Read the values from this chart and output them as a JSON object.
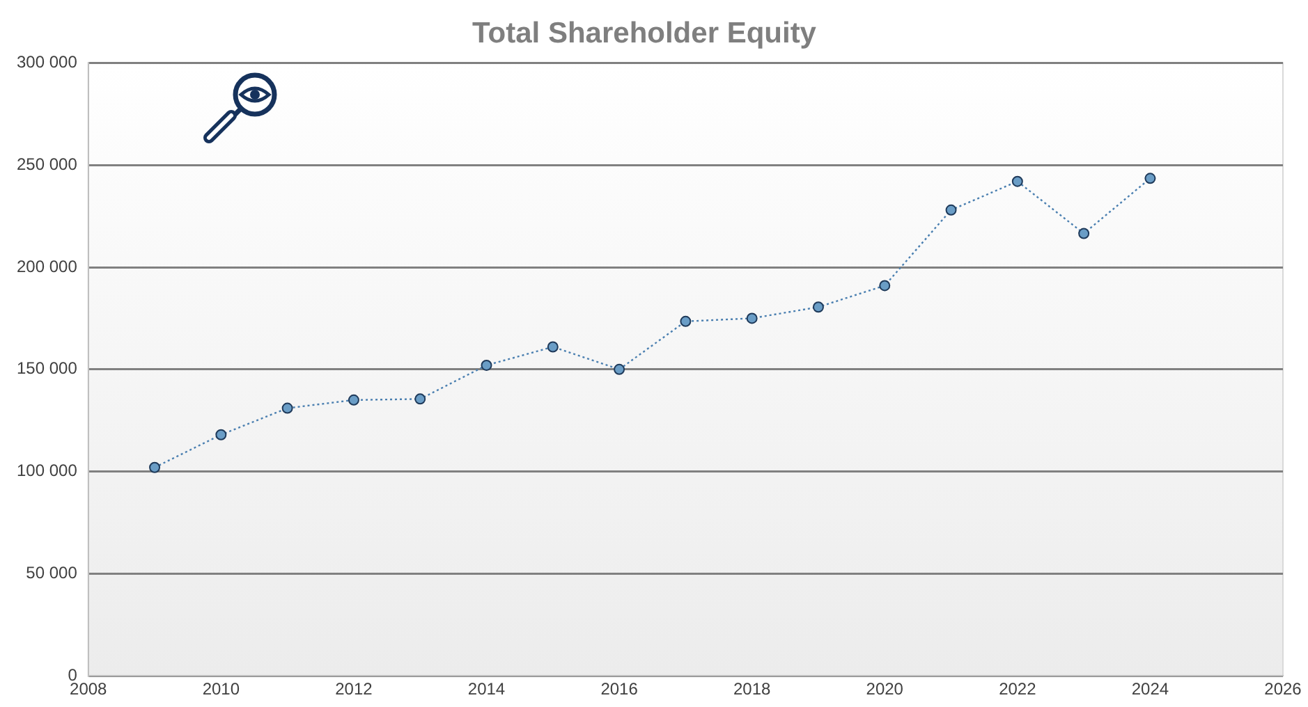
{
  "chart_data": {
    "type": "line",
    "title": "Total Shareholder Equity",
    "x": [
      2009,
      2010,
      2011,
      2012,
      2013,
      2014,
      2015,
      2016,
      2017,
      2018,
      2019,
      2020,
      2021,
      2022,
      2023,
      2024
    ],
    "series": [
      {
        "color": "#4a7fb0",
        "values": [
          102000,
          118000,
          131000,
          135000,
          135500,
          152000,
          161000,
          150000,
          173500,
          175000,
          180500,
          191000,
          228000,
          242000,
          216500,
          243500
        ]
      }
    ],
    "xlim": [
      2008,
      2026
    ],
    "xticks": [
      2008,
      2010,
      2012,
      2014,
      2016,
      2018,
      2020,
      2022,
      2024,
      2026
    ],
    "ylim": [
      0,
      300000
    ],
    "yticks": [
      {
        "value": 0,
        "label": "0"
      },
      {
        "value": 50000,
        "label": "50 000"
      },
      {
        "value": 100000,
        "label": "100 000"
      },
      {
        "value": 150000,
        "label": "150 000"
      },
      {
        "value": 200000,
        "label": "200 000"
      },
      {
        "value": 250000,
        "label": "250 000"
      },
      {
        "value": 300000,
        "label": "300 000"
      }
    ],
    "grid": "y",
    "legend": false,
    "marker": "circle",
    "line_style": "dotted"
  }
}
